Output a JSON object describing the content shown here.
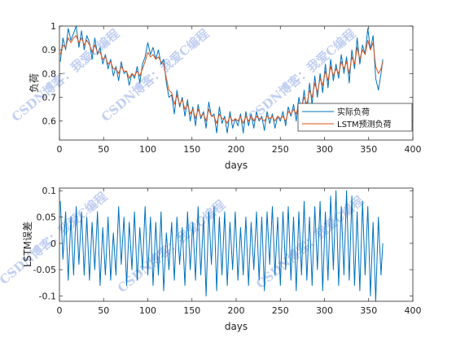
{
  "chart_data": [
    {
      "type": "line",
      "xlabel": "days",
      "ylabel": "负荷",
      "xlim": [
        0,
        400
      ],
      "ylim": [
        0.52,
        1.0
      ],
      "xticks": [
        0,
        50,
        100,
        150,
        200,
        250,
        300,
        350,
        400
      ],
      "yticks": [
        0.6,
        0.7,
        0.8,
        0.9,
        1
      ],
      "grid": false,
      "legend_position": "lower-right",
      "series": [
        {
          "name": "实际负荷",
          "color": "#0072BD",
          "x": [
            1,
            4,
            7,
            10,
            13,
            16,
            19,
            22,
            25,
            28,
            31,
            34,
            37,
            40,
            43,
            46,
            49,
            52,
            55,
            58,
            61,
            64,
            67,
            70,
            73,
            76,
            79,
            82,
            85,
            88,
            91,
            94,
            97,
            100,
            103,
            106,
            109,
            112,
            115,
            118,
            121,
            124,
            127,
            130,
            133,
            136,
            139,
            142,
            145,
            148,
            151,
            154,
            157,
            160,
            163,
            166,
            169,
            172,
            175,
            178,
            181,
            184,
            187,
            190,
            193,
            196,
            199,
            202,
            205,
            208,
            211,
            214,
            217,
            220,
            223,
            226,
            229,
            232,
            235,
            238,
            241,
            244,
            247,
            250,
            253,
            256,
            259,
            262,
            265,
            268,
            271,
            274,
            277,
            280,
            283,
            286,
            289,
            292,
            295,
            298,
            301,
            304,
            307,
            310,
            313,
            316,
            319,
            322,
            325,
            328,
            331,
            334,
            337,
            340,
            343,
            346,
            349,
            352,
            355,
            358,
            361,
            364,
            366
          ],
          "y": [
            0.85,
            0.95,
            0.9,
            0.99,
            0.94,
            0.97,
            1.0,
            0.91,
            0.98,
            0.9,
            0.96,
            0.93,
            0.86,
            0.95,
            0.88,
            0.91,
            0.84,
            0.88,
            0.82,
            0.86,
            0.79,
            0.83,
            0.77,
            0.85,
            0.8,
            0.81,
            0.75,
            0.8,
            0.78,
            0.83,
            0.76,
            0.84,
            0.87,
            0.93,
            0.88,
            0.91,
            0.86,
            0.9,
            0.84,
            0.86,
            0.76,
            0.7,
            0.71,
            0.63,
            0.73,
            0.66,
            0.7,
            0.62,
            0.69,
            0.6,
            0.66,
            0.58,
            0.67,
            0.61,
            0.64,
            0.57,
            0.68,
            0.62,
            0.63,
            0.55,
            0.66,
            0.59,
            0.62,
            0.55,
            0.64,
            0.57,
            0.61,
            0.58,
            0.63,
            0.55,
            0.64,
            0.58,
            0.63,
            0.57,
            0.64,
            0.6,
            0.62,
            0.56,
            0.64,
            0.59,
            0.63,
            0.57,
            0.62,
            0.6,
            0.64,
            0.58,
            0.66,
            0.62,
            0.67,
            0.6,
            0.7,
            0.64,
            0.73,
            0.63,
            0.76,
            0.67,
            0.79,
            0.7,
            0.8,
            0.72,
            0.84,
            0.74,
            0.86,
            0.77,
            0.84,
            0.78,
            0.88,
            0.8,
            0.87,
            0.76,
            0.9,
            0.82,
            0.95,
            0.84,
            0.92,
            0.88,
            0.99,
            0.9,
            0.96,
            0.78,
            0.73,
            0.8,
            0.86
          ]
        },
        {
          "name": "LSTM预测负荷",
          "color": "#D95319",
          "x": [
            1,
            4,
            7,
            10,
            13,
            16,
            19,
            22,
            25,
            28,
            31,
            34,
            37,
            40,
            43,
            46,
            49,
            52,
            55,
            58,
            61,
            64,
            67,
            70,
            73,
            76,
            79,
            82,
            85,
            88,
            91,
            94,
            97,
            100,
            103,
            106,
            109,
            112,
            115,
            118,
            121,
            124,
            127,
            130,
            133,
            136,
            139,
            142,
            145,
            148,
            151,
            154,
            157,
            160,
            163,
            166,
            169,
            172,
            175,
            178,
            181,
            184,
            187,
            190,
            193,
            196,
            199,
            202,
            205,
            208,
            211,
            214,
            217,
            220,
            223,
            226,
            229,
            232,
            235,
            238,
            241,
            244,
            247,
            250,
            253,
            256,
            259,
            262,
            265,
            268,
            271,
            274,
            277,
            280,
            283,
            286,
            289,
            292,
            295,
            298,
            301,
            304,
            307,
            310,
            313,
            316,
            319,
            322,
            325,
            328,
            331,
            334,
            337,
            340,
            343,
            346,
            349,
            352,
            355,
            358,
            361,
            364,
            366
          ],
          "y": [
            0.88,
            0.92,
            0.91,
            0.95,
            0.93,
            0.95,
            0.96,
            0.93,
            0.95,
            0.92,
            0.94,
            0.92,
            0.89,
            0.92,
            0.89,
            0.89,
            0.86,
            0.87,
            0.84,
            0.85,
            0.82,
            0.82,
            0.8,
            0.83,
            0.81,
            0.81,
            0.78,
            0.8,
            0.79,
            0.81,
            0.79,
            0.82,
            0.85,
            0.89,
            0.87,
            0.88,
            0.86,
            0.87,
            0.85,
            0.84,
            0.78,
            0.73,
            0.72,
            0.67,
            0.71,
            0.67,
            0.69,
            0.65,
            0.67,
            0.63,
            0.65,
            0.61,
            0.65,
            0.62,
            0.63,
            0.6,
            0.65,
            0.62,
            0.62,
            0.59,
            0.63,
            0.61,
            0.61,
            0.59,
            0.62,
            0.6,
            0.61,
            0.6,
            0.62,
            0.59,
            0.62,
            0.6,
            0.62,
            0.6,
            0.62,
            0.61,
            0.61,
            0.6,
            0.62,
            0.61,
            0.62,
            0.6,
            0.62,
            0.61,
            0.62,
            0.6,
            0.64,
            0.63,
            0.65,
            0.63,
            0.67,
            0.66,
            0.7,
            0.67,
            0.73,
            0.7,
            0.76,
            0.72,
            0.78,
            0.75,
            0.81,
            0.77,
            0.83,
            0.79,
            0.82,
            0.8,
            0.85,
            0.82,
            0.85,
            0.8,
            0.87,
            0.84,
            0.91,
            0.86,
            0.9,
            0.88,
            0.94,
            0.9,
            0.93,
            0.83,
            0.8,
            0.82,
            0.85
          ]
        }
      ],
      "watermark_texts": [
        "CSDN博客：我爱C编程",
        "CSDN博客：我爱C编程",
        "CSDN博客：我爱C编程"
      ]
    },
    {
      "type": "line",
      "xlabel": "days",
      "ylabel": "LSTM误差",
      "xlim": [
        0,
        400
      ],
      "ylim": [
        -0.11,
        0.105
      ],
      "xticks": [
        0,
        50,
        100,
        150,
        200,
        250,
        300,
        350,
        400
      ],
      "yticks": [
        -0.1,
        -0.05,
        0,
        0.05,
        0.1
      ],
      "grid": false,
      "series": [
        {
          "color": "#0072BD",
          "x": [
            1,
            4,
            7,
            10,
            13,
            16,
            19,
            22,
            25,
            28,
            31,
            34,
            37,
            40,
            43,
            46,
            49,
            52,
            55,
            58,
            61,
            64,
            67,
            70,
            73,
            76,
            79,
            82,
            85,
            88,
            91,
            94,
            97,
            100,
            103,
            106,
            109,
            112,
            115,
            118,
            121,
            124,
            127,
            130,
            133,
            136,
            139,
            142,
            145,
            148,
            151,
            154,
            157,
            160,
            163,
            166,
            169,
            172,
            175,
            178,
            181,
            184,
            187,
            190,
            193,
            196,
            199,
            202,
            205,
            208,
            211,
            214,
            217,
            220,
            223,
            226,
            229,
            232,
            235,
            238,
            241,
            244,
            247,
            250,
            253,
            256,
            259,
            262,
            265,
            268,
            271,
            274,
            277,
            280,
            283,
            286,
            289,
            292,
            295,
            298,
            301,
            304,
            307,
            310,
            313,
            316,
            319,
            322,
            325,
            328,
            331,
            334,
            337,
            340,
            343,
            346,
            349,
            352,
            355,
            358,
            361,
            364,
            366
          ],
          "y": [
            0.08,
            -0.03,
            0.06,
            -0.07,
            0.05,
            -0.06,
            0.07,
            -0.04,
            0.06,
            -0.06,
            0.05,
            -0.07,
            0.04,
            -0.05,
            0.06,
            -0.08,
            0.03,
            -0.06,
            0.05,
            -0.07,
            0.02,
            -0.06,
            0.07,
            -0.04,
            0.05,
            -0.08,
            0.04,
            -0.05,
            0.06,
            -0.07,
            0.03,
            -0.05,
            0.07,
            -0.06,
            0.05,
            -0.08,
            0.04,
            -0.06,
            0.06,
            -0.09,
            0.02,
            -0.05,
            0.04,
            -0.07,
            0.05,
            -0.04,
            0.03,
            -0.08,
            0.06,
            -0.05,
            0.04,
            -0.07,
            0.07,
            -0.06,
            0.05,
            -0.1,
            0.06,
            -0.04,
            0.07,
            -0.09,
            0.05,
            -0.06,
            0.06,
            -0.08,
            0.04,
            -0.05,
            0.06,
            -0.07,
            0.03,
            -0.06,
            0.05,
            -0.08,
            0.04,
            -0.05,
            0.06,
            -0.07,
            0.05,
            -0.09,
            0.06,
            -0.04,
            0.07,
            -0.06,
            0.05,
            -0.08,
            0.06,
            -0.05,
            0.07,
            -0.07,
            0.05,
            -0.09,
            0.06,
            -0.06,
            0.08,
            -0.07,
            0.05,
            -0.08,
            0.07,
            -0.05,
            0.08,
            -0.09,
            0.06,
            -0.07,
            0.09,
            -0.05,
            0.1,
            -0.08,
            0.07,
            -0.06,
            0.1,
            -0.07,
            0.09,
            -0.08,
            0.06,
            -0.09,
            0.08,
            -0.06,
            0.07,
            -0.1,
            0.04,
            -0.11,
            0.05,
            -0.06,
            0.0
          ]
        }
      ],
      "watermark_texts": [
        "CSDN博客：我爱C编程",
        "CSDN博客：我爱C编程",
        "CSDN博客：我爱C编程"
      ]
    }
  ]
}
